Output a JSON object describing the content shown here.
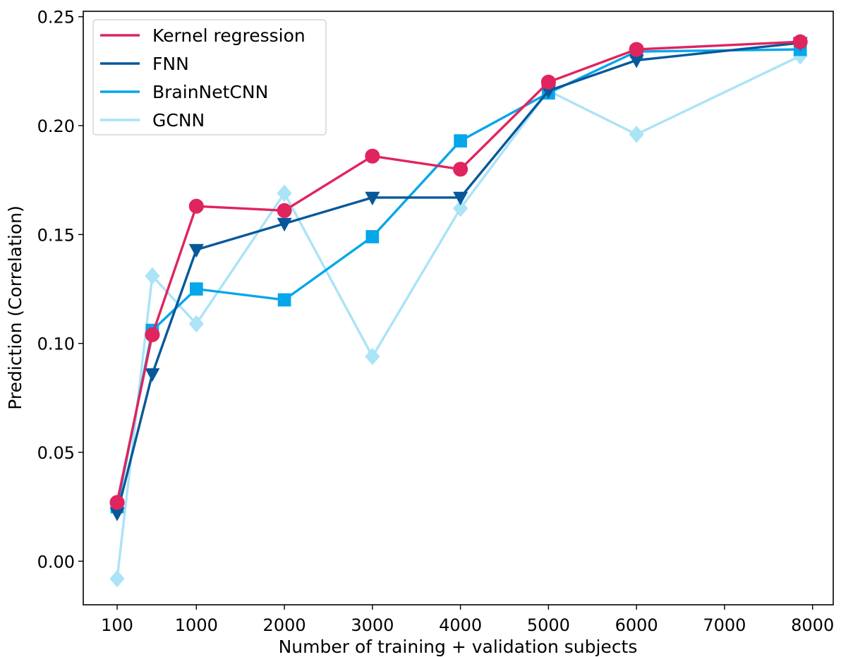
{
  "chart_data": {
    "type": "line",
    "title": "",
    "xlabel": "Number of training + validation subjects",
    "ylabel": "Prediction (Correlation)",
    "xlim": [
      -285,
      8235
    ],
    "ylim": [
      -0.02,
      0.2525
    ],
    "x_ticks": [
      {
        "value": 100,
        "label": "100"
      },
      {
        "value": 1000,
        "label": "1000"
      },
      {
        "value": 2000,
        "label": "2000"
      },
      {
        "value": 3000,
        "label": "3000"
      },
      {
        "value": 4000,
        "label": "4000"
      },
      {
        "value": 5000,
        "label": "5000"
      },
      {
        "value": 6000,
        "label": "6000"
      },
      {
        "value": 7000,
        "label": "7000"
      },
      {
        "value": 8000,
        "label": "8000"
      }
    ],
    "y_ticks": [
      {
        "value": 0.0,
        "label": "0.00"
      },
      {
        "value": 0.05,
        "label": "0.05"
      },
      {
        "value": 0.1,
        "label": "0.10"
      },
      {
        "value": 0.15,
        "label": "0.15"
      },
      {
        "value": 0.2,
        "label": "0.20"
      },
      {
        "value": 0.25,
        "label": "0.25"
      }
    ],
    "grid": false,
    "legend_position": "top-left",
    "series": [
      {
        "name": "Kernel regression",
        "color": "#e0245e",
        "marker": "circle",
        "x": [
          100,
          500,
          1000,
          2000,
          3000,
          4000,
          5000,
          6000,
          7860
        ],
        "values": [
          0.027,
          0.104,
          0.163,
          0.161,
          0.186,
          0.18,
          0.22,
          0.235,
          0.2385
        ]
      },
      {
        "name": "FNN",
        "color": "#07589a",
        "marker": "triangle-down",
        "x": [
          100,
          500,
          1000,
          2000,
          3000,
          4000,
          5000,
          6000,
          7860
        ],
        "values": [
          0.022,
          0.086,
          0.143,
          0.155,
          0.167,
          0.167,
          0.216,
          0.23,
          0.238
        ]
      },
      {
        "name": "BrainNetCNN",
        "color": "#06a6ea",
        "marker": "square",
        "x": [
          100,
          500,
          1000,
          2000,
          3000,
          4000,
          5000,
          6000,
          7860
        ],
        "values": [
          0.025,
          0.106,
          0.125,
          0.12,
          0.149,
          0.193,
          0.215,
          0.234,
          0.235
        ]
      },
      {
        "name": "GCNN",
        "color": "#abe3f7",
        "marker": "diamond",
        "x": [
          100,
          500,
          1000,
          2000,
          3000,
          4000,
          5000,
          6000,
          7860
        ],
        "values": [
          -0.008,
          0.131,
          0.109,
          0.169,
          0.094,
          0.162,
          0.216,
          0.196,
          0.232
        ]
      }
    ]
  }
}
